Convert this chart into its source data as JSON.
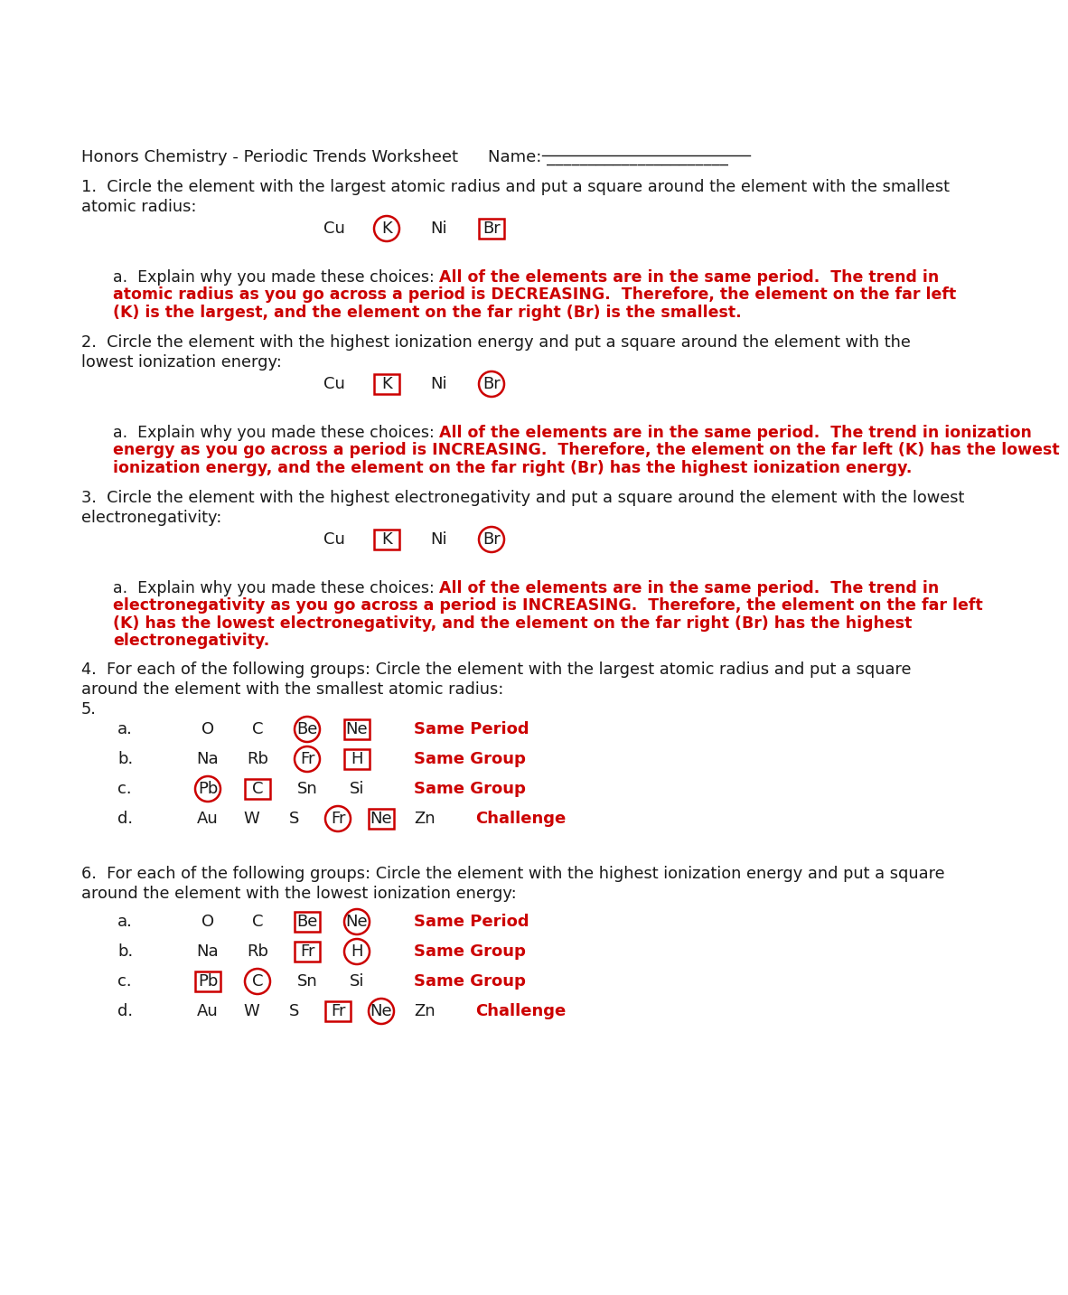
{
  "bg": "#ffffff",
  "red": "#cc0000",
  "blk": "#1a1a1a",
  "header": "Honors Chemistry - Periodic Trends Worksheet",
  "name_line": "Name: ______________________",
  "q1_l1": "1.  Circle the element with the largest atomic radius and put a square around the element with the smallest",
  "q1_l2": "atomic radius:",
  "q1_elems": [
    "Cu",
    "K",
    "Ni",
    "Br"
  ],
  "q1_circ": "K",
  "q1_sq": "Br",
  "q1a_black": "a.  Explain why you made these choices: ",
  "q1a_red_l1": "All of the elements are in the same period.  The trend in",
  "q1a_red_l2": "atomic radius as you go across a period is DECREASING.  Therefore, the element on the far left",
  "q1a_red_l3": "(K) is the largest, and the element on the far right (Br) is the smallest.",
  "q2_l1": "2.  Circle the element with the highest ionization energy and put a square around the element with the",
  "q2_l2": "lowest ionization energy:",
  "q2_elems": [
    "Cu",
    "K",
    "Ni",
    "Br"
  ],
  "q2_circ": "Br",
  "q2_sq": "K",
  "q2a_black": "a.  Explain why you made these choices: ",
  "q2a_red_l1": "All of the elements are in the same period.  The trend in ionization",
  "q2a_red_l2": "energy as you go across a period is INCREASING.  Therefore, the element on the far left (K) has the lowest",
  "q2a_red_l3": "ionization energy, and the element on the far right (Br) has the highest ionization energy.",
  "q3_l1": "3.  Circle the element with the highest electronegativity and put a square around the element with the lowest",
  "q3_l2": "electronegativity:",
  "q3_elems": [
    "Cu",
    "K",
    "Ni",
    "Br"
  ],
  "q3_circ": "Br",
  "q3_sq": "K",
  "q3a_black": "a.  Explain why you made these choices: ",
  "q3a_red_l1": "All of the elements are in the same period.  The trend in",
  "q3a_red_l2": "electronegativity as you go across a period is INCREASING.  Therefore, the element on the far left",
  "q3a_red_l3": "(K) has the lowest electronegativity, and the element on the far right (Br) has the highest",
  "q3a_red_l4": "electronegativity.",
  "q4_l1": "4.  For each of the following groups: Circle the element with the largest atomic radius and put a square",
  "q4_l2": "around the element with the smallest atomic radius:",
  "q5_lbl": "5.",
  "q4a_let": "a.",
  "q4a_elems": [
    "O",
    "C",
    "Be",
    "Ne"
  ],
  "q4a_circ": "Be",
  "q4a_sq": "Ne",
  "q4a_lbl": "Same Period",
  "q4b_let": "b.",
  "q4b_elems": [
    "Na",
    "Rb",
    "Fr",
    "H"
  ],
  "q4b_circ": "Fr",
  "q4b_sq": "H",
  "q4b_lbl": "Same Group",
  "q4c_let": "c.",
  "q4c_elems": [
    "Pb",
    "C",
    "Sn",
    "Si"
  ],
  "q4c_circ": "Pb",
  "q4c_sq": "C",
  "q4c_lbl": "Same Group",
  "q4d_let": "d.",
  "q4d_elems": [
    "Au",
    "W",
    "S",
    "Fr",
    "Ne",
    "Zn"
  ],
  "q4d_circ": "Fr",
  "q4d_sq": "Ne",
  "q4d_lbl": "Challenge",
  "q6_l1": "6.  For each of the following groups: Circle the element with the highest ionization energy and put a square",
  "q6_l2": "around the element with the lowest ionization energy:",
  "q6a_let": "a.",
  "q6a_elems": [
    "O",
    "C",
    "Be",
    "Ne"
  ],
  "q6a_circ": "Ne",
  "q6a_sq": "Be",
  "q6a_lbl": "Same Period",
  "q6b_let": "b.",
  "q6b_elems": [
    "Na",
    "Rb",
    "Fr",
    "H"
  ],
  "q6b_circ": "H",
  "q6b_sq": "Fr",
  "q6b_lbl": "Same Group",
  "q6c_let": "c.",
  "q6c_elems": [
    "Pb",
    "C",
    "Sn",
    "Si"
  ],
  "q6c_circ": "C",
  "q6c_sq": "Pb",
  "q6c_lbl": "Same Group",
  "q6d_let": "d.",
  "q6d_elems": [
    "Au",
    "W",
    "S",
    "Fr",
    "Ne",
    "Zn"
  ],
  "q6d_circ": "Ne",
  "q6d_sq": "Fr",
  "q6d_lbl": "Challenge"
}
